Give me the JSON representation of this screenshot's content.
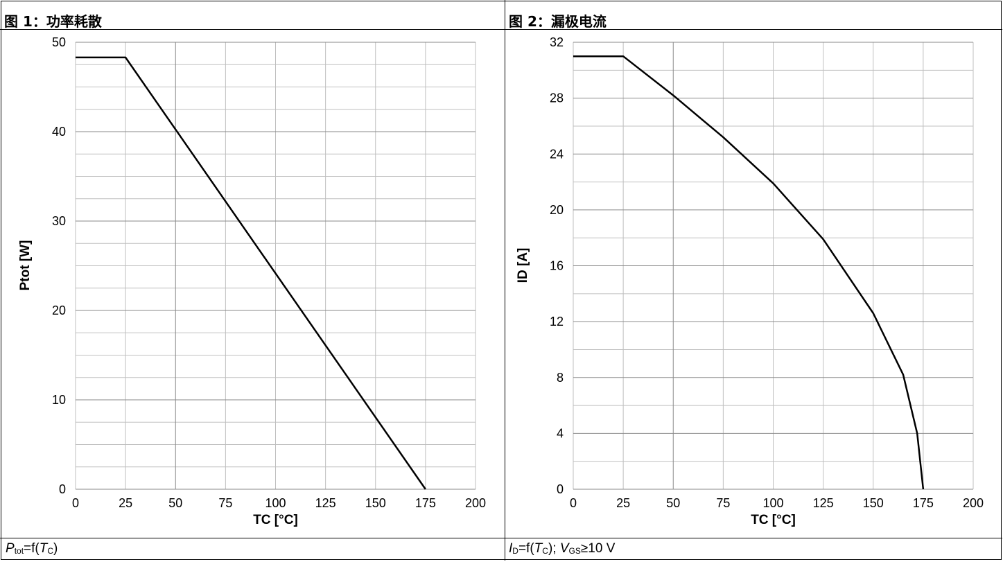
{
  "panels": [
    {
      "title": "图 1：功率耗散",
      "caption": {
        "parts": [
          {
            "t": "P",
            "i": true
          },
          {
            "t": "tot",
            "sub": true
          },
          {
            "t": "=f("
          },
          {
            "t": "T",
            "i": true
          },
          {
            "t": "C",
            "sub": true
          },
          {
            "t": ")"
          }
        ]
      }
    },
    {
      "title": "图 2：漏极电流",
      "caption": {
        "parts": [
          {
            "t": "I",
            "i": true
          },
          {
            "t": "D",
            "sub": true
          },
          {
            "t": "=f("
          },
          {
            "t": "T",
            "i": true
          },
          {
            "t": "C",
            "sub": true
          },
          {
            "t": "); "
          },
          {
            "t": "V",
            "i": true
          },
          {
            "t": "GS",
            "sub": true
          },
          {
            "t": "≥10 V"
          }
        ]
      }
    }
  ],
  "chart_data": [
    {
      "type": "line",
      "title": "图 1：功率耗散",
      "xlabel": "TC [°C]",
      "ylabel": "Ptot [W]",
      "x_ticks": [
        0,
        25,
        50,
        75,
        100,
        125,
        150,
        175,
        200
      ],
      "y_ticks": [
        0,
        10,
        20,
        30,
        40,
        50
      ],
      "xlim": [
        0,
        200
      ],
      "ylim": [
        0,
        50
      ],
      "grid": true,
      "series": [
        {
          "x": [
            0,
            25,
            175
          ],
          "y": [
            48.3,
            48.3,
            0
          ]
        }
      ]
    },
    {
      "type": "line",
      "title": "图 2：漏极电流",
      "xlabel": "TC [°C]",
      "ylabel": "ID [A]",
      "x_ticks": [
        0,
        25,
        50,
        75,
        100,
        125,
        150,
        175,
        200
      ],
      "y_ticks": [
        0,
        4,
        8,
        12,
        16,
        20,
        24,
        28,
        32
      ],
      "xlim": [
        0,
        200
      ],
      "ylim": [
        0,
        32
      ],
      "grid": true,
      "series": [
        {
          "x": [
            0,
            25,
            50,
            75,
            100,
            125,
            150,
            165,
            172,
            175
          ],
          "y": [
            31.0,
            31.0,
            28.2,
            25.2,
            21.9,
            17.9,
            12.6,
            8.2,
            4.0,
            0
          ]
        }
      ]
    }
  ]
}
